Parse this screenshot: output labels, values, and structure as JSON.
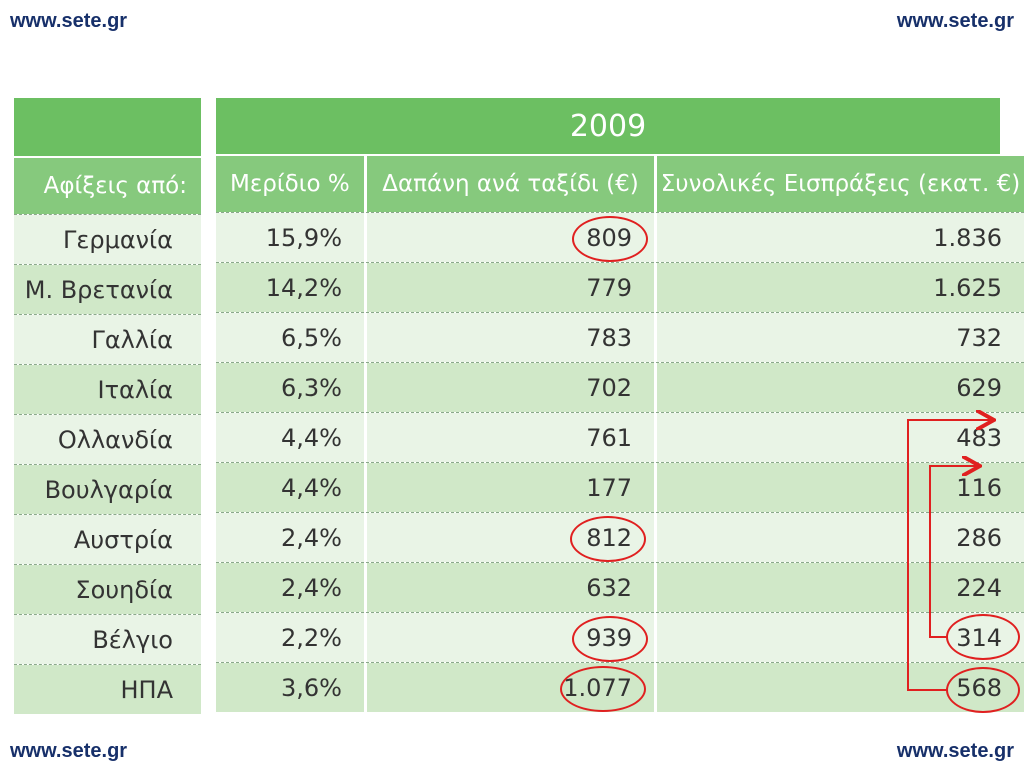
{
  "corners": {
    "top_left": "www.sete.gr",
    "top_right": "www.sete.gr",
    "bottom_left": "www.sete.gr",
    "bottom_right": "www.sete.gr"
  },
  "table": {
    "year": "2009",
    "origin_header": "Αφίξεις από:",
    "columns": [
      "Μερίδιο %",
      "Δαπάνη ανά ταξίδι (€)",
      "Συνολικές Εισπράξεις (εκατ. €)"
    ],
    "rows": [
      {
        "country": "Γερμανία",
        "share": "15,9%",
        "spend": "809",
        "receipts": "1.836"
      },
      {
        "country": "Μ. Βρετανία",
        "share": "14,2%",
        "spend": "779",
        "receipts": "1.625"
      },
      {
        "country": "Γαλλία",
        "share": "6,5%",
        "spend": "783",
        "receipts": "732"
      },
      {
        "country": "Ιταλία",
        "share": "6,3%",
        "spend": "702",
        "receipts": "629"
      },
      {
        "country": "Ολλανδία",
        "share": "4,4%",
        "spend": "761",
        "receipts": "483"
      },
      {
        "country": "Βουλγαρία",
        "share": "4,4%",
        "spend": "177",
        "receipts": "116"
      },
      {
        "country": "Αυστρία",
        "share": "2,4%",
        "spend": "812",
        "receipts": "286"
      },
      {
        "country": "Σουηδία",
        "share": "2,4%",
        "spend": "632",
        "receipts": "224"
      },
      {
        "country": "Βέλγιο",
        "share": "2,2%",
        "spend": "939",
        "receipts": "314"
      },
      {
        "country": "ΗΠΑ",
        "share": "3,6%",
        "spend": "1.077",
        "receipts": "568"
      }
    ]
  },
  "colors": {
    "header_dark": "#6cbf62",
    "header_light": "#86c97d",
    "row_light": "#e9f4e6",
    "row_mid": "#d0e8c8",
    "annotation": "#e02020",
    "link": "#17306a"
  }
}
